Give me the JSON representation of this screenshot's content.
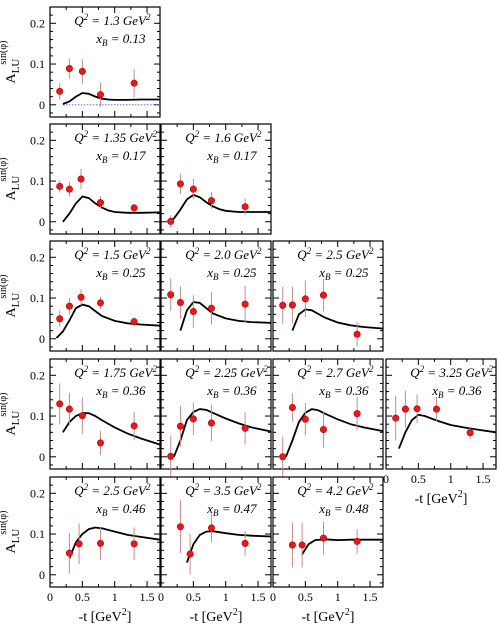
{
  "chart_data": {
    "type": "scatter",
    "y_axis_title": {
      "main": "A",
      "sub": "LU",
      "sup": "sin(φ)"
    },
    "x_axis_title": {
      "main": "-t [GeV",
      "sup": "2",
      "close": "]"
    },
    "xlim": [
      0,
      1.7
    ],
    "ylim": [
      -0.03,
      0.24
    ],
    "x_ticks": [
      0,
      0.5,
      1,
      1.5
    ],
    "x_tick_labels": [
      "0",
      "0.5",
      "1",
      "1.5"
    ],
    "y_ticks": [
      0,
      0.1,
      0.2
    ],
    "y_tick_labels": [
      "0",
      "0.1",
      "0.2"
    ],
    "marker_color": "#e8191c",
    "errorbar_color": "#c98a8a",
    "curve_color": "#000000",
    "zero_line_color": "#6666ff",
    "panels": [
      {
        "row": 0,
        "col": 0,
        "q2": "1.3",
        "xb": "0.13",
        "zero_line": true,
        "points": [
          {
            "x": 0.15,
            "y": 0.033,
            "err": 0.02
          },
          {
            "x": 0.3,
            "y": 0.089,
            "err": 0.025
          },
          {
            "x": 0.5,
            "y": 0.082,
            "err": 0.03
          },
          {
            "x": 0.78,
            "y": 0.025,
            "err": 0.03
          },
          {
            "x": 1.3,
            "y": 0.053,
            "err": 0.035
          }
        ],
        "curve": [
          [
            0.2,
            0.002
          ],
          [
            0.3,
            0.008
          ],
          [
            0.4,
            0.02
          ],
          [
            0.5,
            0.029
          ],
          [
            0.6,
            0.027
          ],
          [
            0.7,
            0.02
          ],
          [
            0.8,
            0.015
          ],
          [
            0.9,
            0.013
          ],
          [
            1.0,
            0.012
          ],
          [
            1.2,
            0.012
          ],
          [
            1.4,
            0.013
          ],
          [
            1.7,
            0.013
          ]
        ]
      },
      {
        "row": 1,
        "col": 0,
        "q2": "1.35",
        "xb": "0.17",
        "points": [
          {
            "x": 0.15,
            "y": 0.087,
            "err": 0.015
          },
          {
            "x": 0.3,
            "y": 0.08,
            "err": 0.018
          },
          {
            "x": 0.48,
            "y": 0.105,
            "err": 0.025
          },
          {
            "x": 0.78,
            "y": 0.047,
            "err": 0.015
          },
          {
            "x": 1.3,
            "y": 0.034,
            "err": 0.01
          }
        ],
        "curve": [
          [
            0.2,
            0.0
          ],
          [
            0.3,
            0.02
          ],
          [
            0.4,
            0.045
          ],
          [
            0.5,
            0.062
          ],
          [
            0.6,
            0.058
          ],
          [
            0.7,
            0.045
          ],
          [
            0.8,
            0.035
          ],
          [
            0.9,
            0.028
          ],
          [
            1.0,
            0.024
          ],
          [
            1.2,
            0.022
          ],
          [
            1.4,
            0.022
          ],
          [
            1.7,
            0.023
          ]
        ]
      },
      {
        "row": 1,
        "col": 1,
        "q2": "1.6",
        "xb": "0.17",
        "points": [
          {
            "x": 0.15,
            "y": 0.001,
            "err": 0.015
          },
          {
            "x": 0.3,
            "y": 0.093,
            "err": 0.025
          },
          {
            "x": 0.5,
            "y": 0.08,
            "err": 0.025
          },
          {
            "x": 0.78,
            "y": 0.052,
            "err": 0.02
          },
          {
            "x": 1.3,
            "y": 0.037,
            "err": 0.02
          }
        ],
        "curve": [
          [
            0.1,
            0.0
          ],
          [
            0.2,
            0.008
          ],
          [
            0.3,
            0.03
          ],
          [
            0.4,
            0.055
          ],
          [
            0.5,
            0.066
          ],
          [
            0.6,
            0.06
          ],
          [
            0.7,
            0.048
          ],
          [
            0.8,
            0.038
          ],
          [
            0.9,
            0.031
          ],
          [
            1.0,
            0.027
          ],
          [
            1.2,
            0.024
          ],
          [
            1.4,
            0.024
          ],
          [
            1.7,
            0.024
          ]
        ]
      },
      {
        "row": 2,
        "col": 0,
        "q2": "1.5",
        "xb": "0.25",
        "points": [
          {
            "x": 0.15,
            "y": 0.049,
            "err": 0.02
          },
          {
            "x": 0.3,
            "y": 0.08,
            "err": 0.02
          },
          {
            "x": 0.48,
            "y": 0.102,
            "err": 0.02
          },
          {
            "x": 0.78,
            "y": 0.088,
            "err": 0.015
          },
          {
            "x": 1.3,
            "y": 0.042,
            "err": 0.01
          }
        ],
        "curve": [
          [
            0.1,
            0.002
          ],
          [
            0.2,
            0.018
          ],
          [
            0.3,
            0.045
          ],
          [
            0.4,
            0.075
          ],
          [
            0.5,
            0.084
          ],
          [
            0.6,
            0.08
          ],
          [
            0.7,
            0.068
          ],
          [
            0.8,
            0.056
          ],
          [
            1.0,
            0.044
          ],
          [
            1.2,
            0.038
          ],
          [
            1.4,
            0.035
          ],
          [
            1.7,
            0.032
          ]
        ]
      },
      {
        "row": 2,
        "col": 1,
        "q2": "2.0",
        "xb": "0.25",
        "points": [
          {
            "x": 0.15,
            "y": 0.108,
            "err": 0.04
          },
          {
            "x": 0.3,
            "y": 0.089,
            "err": 0.04
          },
          {
            "x": 0.5,
            "y": 0.067,
            "err": 0.04
          },
          {
            "x": 0.78,
            "y": 0.075,
            "err": 0.04
          },
          {
            "x": 1.3,
            "y": 0.085,
            "err": 0.045
          }
        ],
        "curve": [
          [
            0.3,
            0.02
          ],
          [
            0.4,
            0.07
          ],
          [
            0.5,
            0.09
          ],
          [
            0.6,
            0.088
          ],
          [
            0.7,
            0.075
          ],
          [
            0.8,
            0.062
          ],
          [
            1.0,
            0.05
          ],
          [
            1.2,
            0.044
          ],
          [
            1.4,
            0.041
          ],
          [
            1.7,
            0.039
          ]
        ]
      },
      {
        "row": 2,
        "col": 2,
        "q2": "2.5",
        "xb": "0.25",
        "points": [
          {
            "x": 0.15,
            "y": 0.082,
            "err": 0.045
          },
          {
            "x": 0.3,
            "y": 0.083,
            "err": 0.045
          },
          {
            "x": 0.5,
            "y": 0.098,
            "err": 0.045
          },
          {
            "x": 0.78,
            "y": 0.107,
            "err": 0.04
          },
          {
            "x": 1.3,
            "y": 0.011,
            "err": 0.03
          }
        ],
        "curve": [
          [
            0.3,
            0.02
          ],
          [
            0.4,
            0.06
          ],
          [
            0.5,
            0.072
          ],
          [
            0.6,
            0.07
          ],
          [
            0.8,
            0.052
          ],
          [
            1.0,
            0.04
          ],
          [
            1.2,
            0.033
          ],
          [
            1.4,
            0.029
          ],
          [
            1.7,
            0.025
          ]
        ]
      },
      {
        "row": 3,
        "col": 0,
        "q2": "1.75",
        "xb": "0.36",
        "points": [
          {
            "x": 0.15,
            "y": 0.13,
            "err": 0.05
          },
          {
            "x": 0.3,
            "y": 0.117,
            "err": 0.04
          },
          {
            "x": 0.5,
            "y": 0.101,
            "err": 0.045
          },
          {
            "x": 0.78,
            "y": 0.034,
            "err": 0.03
          },
          {
            "x": 1.3,
            "y": 0.076,
            "err": 0.035
          }
        ],
        "curve": [
          [
            0.2,
            0.06
          ],
          [
            0.3,
            0.085
          ],
          [
            0.4,
            0.1
          ],
          [
            0.5,
            0.107
          ],
          [
            0.6,
            0.107
          ],
          [
            0.7,
            0.1
          ],
          [
            0.8,
            0.09
          ],
          [
            1.0,
            0.072
          ],
          [
            1.2,
            0.057
          ],
          [
            1.4,
            0.045
          ],
          [
            1.6,
            0.035
          ],
          [
            1.7,
            0.03
          ]
        ]
      },
      {
        "row": 3,
        "col": 1,
        "q2": "2.25",
        "xb": "0.36",
        "points": [
          {
            "x": 0.15,
            "y": 0.001,
            "err": 0.05
          },
          {
            "x": 0.3,
            "y": 0.075,
            "err": 0.05
          },
          {
            "x": 0.5,
            "y": 0.093,
            "err": 0.04
          },
          {
            "x": 0.78,
            "y": 0.083,
            "err": 0.045
          },
          {
            "x": 1.3,
            "y": 0.07,
            "err": 0.04
          }
        ],
        "curve": [
          [
            0.2,
            0.0
          ],
          [
            0.3,
            0.04
          ],
          [
            0.4,
            0.09
          ],
          [
            0.5,
            0.11
          ],
          [
            0.6,
            0.117
          ],
          [
            0.7,
            0.115
          ],
          [
            0.8,
            0.108
          ],
          [
            1.0,
            0.094
          ],
          [
            1.2,
            0.082
          ],
          [
            1.4,
            0.072
          ],
          [
            1.7,
            0.062
          ]
        ]
      },
      {
        "row": 3,
        "col": 2,
        "q2": "2.7",
        "xb": "0.36",
        "points": [
          {
            "x": 0.15,
            "y": 0.0,
            "err": 0.05
          },
          {
            "x": 0.3,
            "y": 0.121,
            "err": 0.035
          },
          {
            "x": 0.5,
            "y": 0.092,
            "err": 0.04
          },
          {
            "x": 0.78,
            "y": 0.067,
            "err": 0.045
          },
          {
            "x": 1.3,
            "y": 0.106,
            "err": 0.04
          }
        ],
        "curve": [
          [
            0.2,
            0.0
          ],
          [
            0.3,
            0.04
          ],
          [
            0.4,
            0.085
          ],
          [
            0.5,
            0.108
          ],
          [
            0.6,
            0.117
          ],
          [
            0.7,
            0.114
          ],
          [
            0.8,
            0.106
          ],
          [
            1.0,
            0.092
          ],
          [
            1.2,
            0.08
          ],
          [
            1.4,
            0.072
          ],
          [
            1.7,
            0.063
          ]
        ]
      },
      {
        "row": 3,
        "col": 3,
        "q2": "3.25",
        "xb": "0.36",
        "points": [
          {
            "x": 0.15,
            "y": 0.095,
            "err": 0.055
          },
          {
            "x": 0.3,
            "y": 0.117,
            "err": 0.045
          },
          {
            "x": 0.48,
            "y": 0.118,
            "err": 0.035
          },
          {
            "x": 0.78,
            "y": 0.117,
            "err": 0.03
          },
          {
            "x": 1.3,
            "y": 0.059,
            "err": 0.015
          }
        ],
        "curve": [
          [
            0.2,
            0.02
          ],
          [
            0.3,
            0.06
          ],
          [
            0.4,
            0.09
          ],
          [
            0.5,
            0.103
          ],
          [
            0.6,
            0.1
          ],
          [
            0.7,
            0.094
          ],
          [
            0.8,
            0.088
          ],
          [
            1.0,
            0.078
          ],
          [
            1.2,
            0.072
          ],
          [
            1.4,
            0.067
          ],
          [
            1.7,
            0.06
          ]
        ]
      },
      {
        "row": 4,
        "col": 0,
        "q2": "2.5",
        "xb": "0.46",
        "points": [
          {
            "x": 0.3,
            "y": 0.053,
            "err": 0.05
          },
          {
            "x": 0.45,
            "y": 0.076,
            "err": 0.05
          },
          {
            "x": 0.78,
            "y": 0.077,
            "err": 0.04
          },
          {
            "x": 1.3,
            "y": 0.076,
            "err": 0.04
          }
        ],
        "curve": [
          [
            0.3,
            0.04
          ],
          [
            0.4,
            0.08
          ],
          [
            0.5,
            0.1
          ],
          [
            0.6,
            0.112
          ],
          [
            0.7,
            0.116
          ],
          [
            0.8,
            0.114
          ],
          [
            1.0,
            0.106
          ],
          [
            1.2,
            0.098
          ],
          [
            1.4,
            0.093
          ],
          [
            1.7,
            0.086
          ]
        ]
      },
      {
        "row": 4,
        "col": 1,
        "q2": "3.5",
        "xb": "0.47",
        "points": [
          {
            "x": 0.3,
            "y": 0.118,
            "err": 0.065
          },
          {
            "x": 0.45,
            "y": 0.051,
            "err": 0.05
          },
          {
            "x": 0.78,
            "y": 0.115,
            "err": 0.035
          },
          {
            "x": 1.3,
            "y": 0.077,
            "err": 0.03
          }
        ],
        "curve": [
          [
            0.4,
            0.03
          ],
          [
            0.5,
            0.075
          ],
          [
            0.6,
            0.098
          ],
          [
            0.7,
            0.106
          ],
          [
            0.8,
            0.107
          ],
          [
            1.0,
            0.102
          ],
          [
            1.2,
            0.098
          ],
          [
            1.4,
            0.096
          ],
          [
            1.7,
            0.094
          ]
        ]
      },
      {
        "row": 4,
        "col": 2,
        "q2": "4.2",
        "xb": "0.48",
        "points": [
          {
            "x": 0.3,
            "y": 0.073,
            "err": 0.055
          },
          {
            "x": 0.45,
            "y": 0.073,
            "err": 0.055
          },
          {
            "x": 0.78,
            "y": 0.09,
            "err": 0.04
          },
          {
            "x": 1.3,
            "y": 0.082,
            "err": 0.03
          }
        ],
        "curve": [
          [
            0.45,
            0.05
          ],
          [
            0.55,
            0.075
          ],
          [
            0.65,
            0.085
          ],
          [
            0.8,
            0.087
          ],
          [
            1.0,
            0.085
          ],
          [
            1.2,
            0.086
          ],
          [
            1.4,
            0.086
          ],
          [
            1.7,
            0.086
          ]
        ]
      }
    ],
    "y_axis_rows": [
      0,
      1,
      2,
      3,
      4
    ],
    "x_axis_columns": [
      {
        "col": 0,
        "row": 4
      },
      {
        "col": 1,
        "row": 4
      },
      {
        "col": 2,
        "row": 4
      },
      {
        "col": 3,
        "row": 3
      }
    ]
  }
}
